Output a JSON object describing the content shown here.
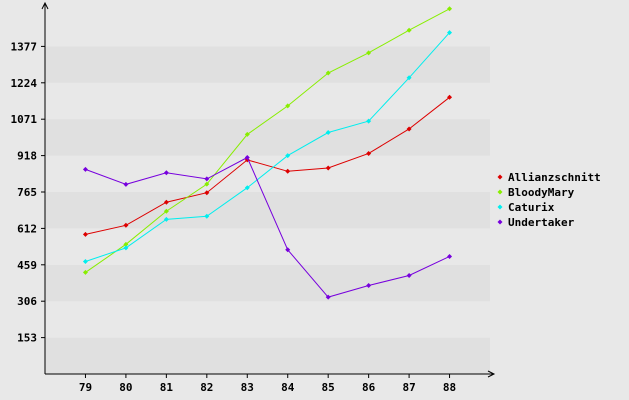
{
  "chart_data": {
    "type": "line",
    "title": "",
    "xlabel": "",
    "ylabel": "",
    "x": [
      "79",
      "80",
      "81",
      "82",
      "83",
      "84",
      "85",
      "86",
      "87",
      "88"
    ],
    "xlim": [
      78,
      89
    ],
    "ylim": [
      0,
      1530
    ],
    "y_ticks": [
      "153",
      "306",
      "459",
      "612",
      "765",
      "918",
      "1071",
      "1224",
      "1377"
    ],
    "grid": "horizontal bands",
    "legend_position": "right",
    "series": [
      {
        "name": "Allianzschnitt",
        "color": "#dd0000",
        "values": [
          587,
          625,
          722,
          762,
          900,
          852,
          866,
          927,
          1030,
          1163
        ]
      },
      {
        "name": "BloodyMary",
        "color": "#88ee00",
        "values": [
          427,
          545,
          684,
          798,
          1007,
          1127,
          1265,
          1350,
          1445,
          1535
        ]
      },
      {
        "name": "Caturix",
        "color": "#00eeee",
        "values": [
          473,
          530,
          650,
          663,
          783,
          918,
          1015,
          1063,
          1245,
          1435
        ]
      },
      {
        "name": "Undertaker",
        "color": "#7700dd",
        "values": [
          860,
          797,
          846,
          820,
          910,
          522,
          323,
          372,
          414,
          494
        ]
      }
    ]
  }
}
